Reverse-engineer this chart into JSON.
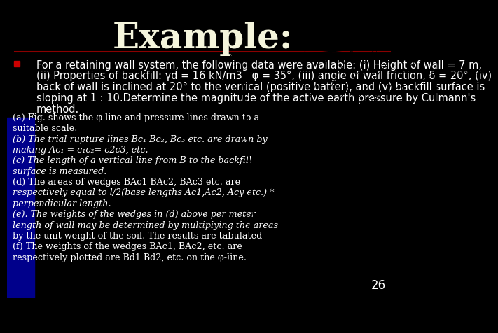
{
  "background_color": "#000000",
  "title": "Example:",
  "title_color": "#F5F5DC",
  "title_fontsize": 36,
  "title_fontstyle": "bold",
  "separator_color": "#8B0000",
  "bullet_color": "#CC0000",
  "bullet_text_color": "#FFFFFF",
  "bullet_fontsize": 10.5,
  "body_text_color": "#FFFFFF",
  "body_fontsize": 10,
  "bullet_lines": [
    "For a retaining wall system, the following data were available: (i) Height of wall = 7 m,",
    "(ii) Properties of backfill: γd = 16 kN/m3,  φ = 35°, (iii) angle of wall friction, δ = 20°, (iv)",
    "back of wall is inclined at 20° to the vertical (positive batter), and (v) backfill surface is",
    "sloping at 1 : 10.Determine the magnitude of the active earth pressure by Culmann's",
    "method."
  ],
  "body_lines": [
    "(a) Fig. shows the φ line and pressure lines drawn to a",
    "suitable scale.",
    "(b) The trial rupture lines Bc₁ Bc₂, Bc₃ etc. are drawn by",
    "making Ac₁ = c₁c₂= c2c3, etc.",
    "(c) The length of a vertical line from B to the backfill",
    "surface is measured.",
    "(d) The areas of wedges BAc1 BAc2, BAc3 etc. are",
    "respectively equal to l/2(base lengths Ac1,Ac2, Acy etc.) *",
    "perpendicular length.",
    "(e). The weights of the wedges in (d) above per meter",
    "length of wall may be determined by multiplying the areas",
    "by the unit weight of the soil. The results are tabulated",
    "(f) The weights of the wedges BAc1, BAc2, etc. are",
    "respectively plotted are Bd1 Bd2, etc. on the φ-line."
  ],
  "italic_indices": [
    2,
    3,
    4,
    5,
    7,
    8,
    9,
    10
  ],
  "page_number": "26",
  "page_number_color": "#FFFFFF",
  "left_panel_bg": "#00008B"
}
